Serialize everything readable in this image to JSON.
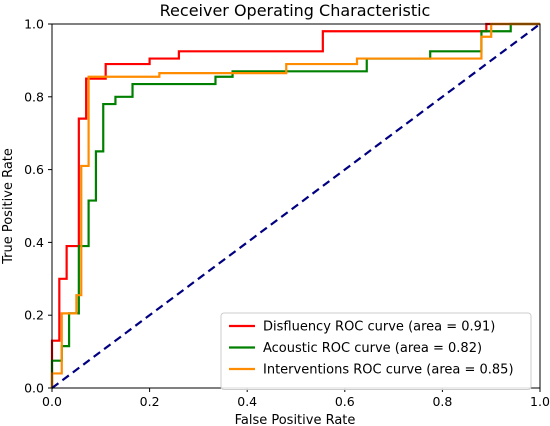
{
  "chart_data": {
    "type": "line",
    "title": "Receiver Operating Characteristic",
    "xlabel": "False Positive Rate",
    "ylabel": "True Positive Rate",
    "xlim": [
      0.0,
      1.0
    ],
    "ylim": [
      0.0,
      1.0
    ],
    "xticks": [
      "0.0",
      "0.2",
      "0.4",
      "0.6",
      "0.8",
      "1.0"
    ],
    "yticks": [
      "0.0",
      "0.2",
      "0.4",
      "0.6",
      "0.8",
      "1.0"
    ],
    "grid": false,
    "legend_position": "lower-right",
    "series": [
      {
        "name": "Disfluency ROC curve (area = 0.91)",
        "color": "#ff0000",
        "style": "solid",
        "x": [
          0.0,
          0.0,
          0.015,
          0.015,
          0.03,
          0.03,
          0.055,
          0.055,
          0.07,
          0.07,
          0.11,
          0.11,
          0.2,
          0.2,
          0.26,
          0.26,
          0.555,
          0.555,
          0.89,
          0.89,
          1.0
        ],
        "y": [
          0.0,
          0.13,
          0.13,
          0.3,
          0.3,
          0.39,
          0.39,
          0.74,
          0.74,
          0.85,
          0.85,
          0.89,
          0.89,
          0.905,
          0.905,
          0.925,
          0.925,
          0.98,
          0.98,
          1.0,
          1.0
        ]
      },
      {
        "name": "Acoustic ROC curve (area = 0.82)",
        "color": "#008000",
        "style": "solid",
        "x": [
          0.0,
          0.0,
          0.02,
          0.02,
          0.035,
          0.035,
          0.055,
          0.055,
          0.075,
          0.075,
          0.09,
          0.09,
          0.105,
          0.105,
          0.115,
          0.115,
          0.13,
          0.13,
          0.165,
          0.165,
          0.335,
          0.335,
          0.37,
          0.37,
          0.645,
          0.645,
          0.775,
          0.775,
          0.88,
          0.88,
          0.94,
          0.94,
          1.0
        ],
        "y": [
          0.0,
          0.075,
          0.075,
          0.115,
          0.115,
          0.205,
          0.205,
          0.39,
          0.39,
          0.515,
          0.515,
          0.65,
          0.65,
          0.78,
          0.78,
          0.78,
          0.78,
          0.8,
          0.8,
          0.835,
          0.835,
          0.855,
          0.855,
          0.87,
          0.87,
          0.905,
          0.905,
          0.925,
          0.925,
          0.98,
          0.98,
          1.0,
          1.0
        ]
      },
      {
        "name": "Interventions ROC curve (area = 0.85)",
        "color": "#ff8c00",
        "style": "solid",
        "x": [
          0.0,
          0.0,
          0.02,
          0.02,
          0.05,
          0.05,
          0.06,
          0.06,
          0.075,
          0.075,
          0.165,
          0.165,
          0.22,
          0.22,
          0.48,
          0.48,
          0.625,
          0.625,
          0.835,
          0.835,
          0.88,
          0.88,
          0.9,
          0.9,
          1.0
        ],
        "y": [
          0.0,
          0.04,
          0.04,
          0.205,
          0.205,
          0.255,
          0.255,
          0.61,
          0.61,
          0.855,
          0.855,
          0.855,
          0.855,
          0.865,
          0.865,
          0.89,
          0.89,
          0.905,
          0.905,
          0.905,
          0.905,
          0.965,
          0.965,
          1.0,
          1.0
        ]
      },
      {
        "name": "",
        "color": "#000080",
        "style": "dashed",
        "x": [
          0.0,
          1.0
        ],
        "y": [
          0.0,
          1.0
        ]
      }
    ]
  }
}
